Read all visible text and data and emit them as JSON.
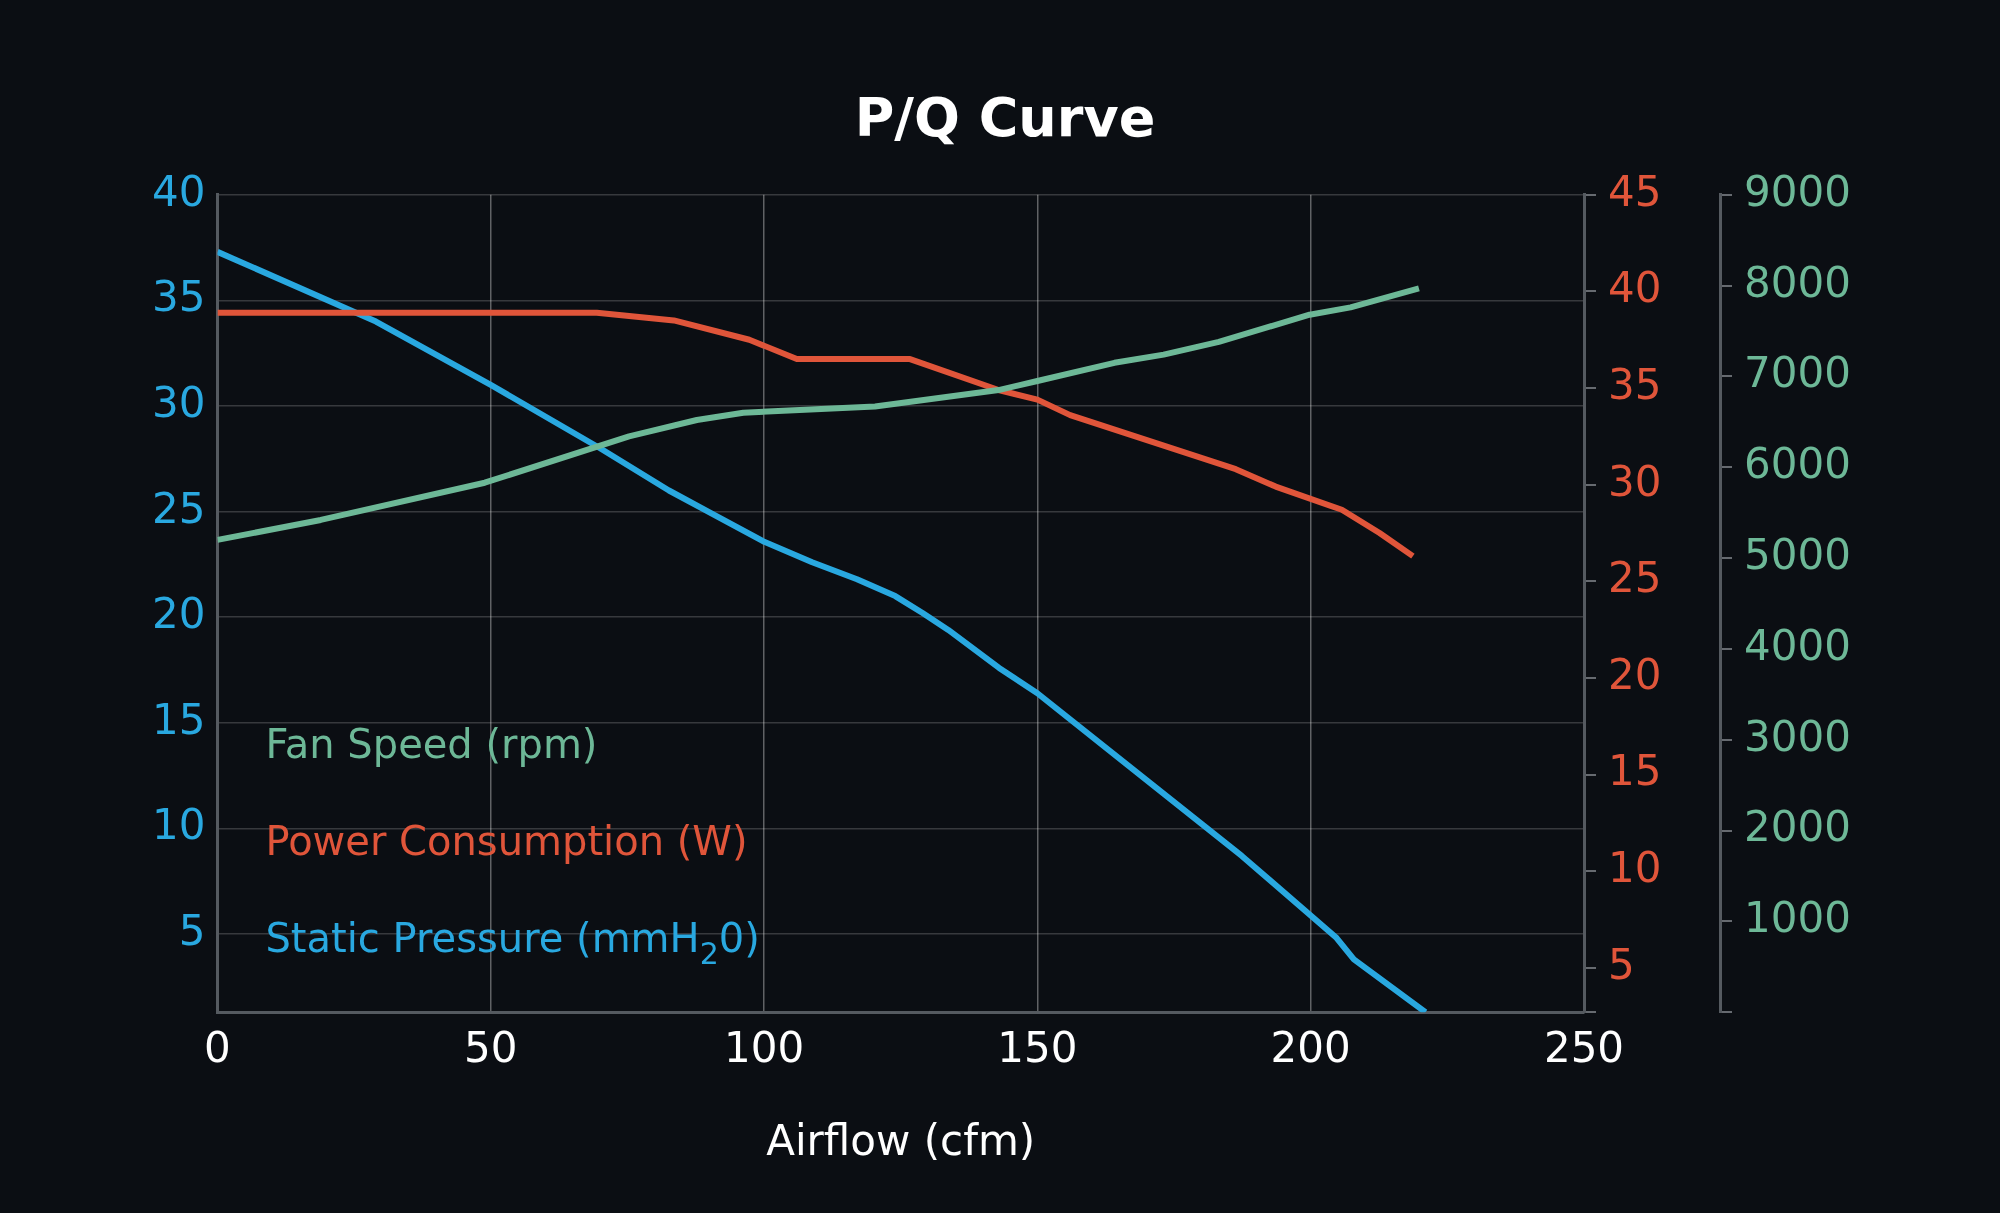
{
  "chart_data": {
    "type": "line",
    "title": "P/Q Curve",
    "xlabel": "Airflow (cfm)",
    "xlim": [
      0,
      250
    ],
    "xticks": [
      0,
      50,
      100,
      150,
      200,
      250
    ],
    "ylim": [
      1.3,
      40
    ],
    "yticks": [
      5,
      10,
      15,
      20,
      25,
      30,
      35,
      40
    ],
    "y2lim": [
      2.7,
      45
    ],
    "y2ticks": [
      {
        "value": 2.7,
        "label": null
      },
      5,
      10,
      15,
      20,
      25,
      30,
      35,
      40,
      45
    ],
    "y3lim": [
      0,
      9000
    ],
    "y3ticks": [
      {
        "value": 0,
        "label": null
      },
      1000,
      2000,
      3000,
      4000,
      5000,
      6000,
      7000,
      8000,
      9000
    ],
    "grid": true,
    "legend": "bottom left",
    "marker": "none",
    "line_style": "solid",
    "series": [
      {
        "name": "Fan Speed (rpm)",
        "color": "#6db897",
        "axis": "y3",
        "x": [
          0,
          18.9,
          48.9,
          75.3,
          87.7,
          96.2,
          120.3,
          142.9,
          150,
          164.1,
          173.1,
          183.2,
          199.8,
          207.3,
          219.8
        ],
        "values": [
          5200,
          5420,
          5830,
          6340,
          6520,
          6600,
          6670,
          6850,
          6950,
          7150,
          7240,
          7380,
          7680,
          7760,
          7970
        ]
      },
      {
        "name": "Power Consumption (W)",
        "color": "#e0553a",
        "axis": "y2",
        "x": [
          0,
          69.4,
          83.5,
          97.3,
          106,
          126.7,
          142.9,
          150,
          156,
          186.3,
          193.6,
          205.7,
          212.6,
          218.7
        ],
        "values": [
          38.9,
          38.9,
          38.5,
          37.5,
          36.5,
          36.5,
          34.9,
          34.4,
          33.6,
          30.8,
          29.9,
          28.7,
          27.5,
          26.3
        ]
      },
      {
        "name": "Static Pressure (mmH$_{2}$0)",
        "color": "#29a8e0",
        "x": [
          0,
          29,
          50,
          70,
          82.6,
          99.8,
          108.8,
          117,
          124,
          129,
          133.7,
          143,
          150,
          187.4,
          204.6,
          207.9,
          221
        ],
        "values": [
          37.3,
          34.0,
          31.0,
          28.0,
          26.0,
          23.6,
          22.6,
          21.8,
          21.0,
          20.2,
          19.4,
          17.6,
          16.4,
          8.7,
          4.85,
          3.8,
          1.3
        ]
      }
    ]
  }
}
